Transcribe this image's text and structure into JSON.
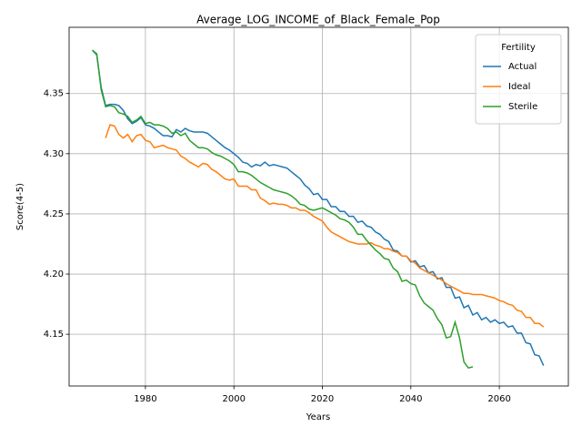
{
  "chart_data": {
    "type": "line",
    "title": "Average_LOG_INCOME_of_Black_Female_Pop",
    "xlabel": "Years",
    "ylabel": "Score(4-5)",
    "x": [
      1968,
      1969,
      1970,
      1971,
      1972,
      1973,
      1974,
      1975,
      1976,
      1977,
      1978,
      1979,
      1980,
      1981,
      1982,
      1983,
      1984,
      1985,
      1986,
      1987,
      1988,
      1989,
      1990,
      1991,
      1992,
      1993,
      1994,
      1995,
      1996,
      1997,
      1998,
      1999,
      2000,
      2001,
      2002,
      2003,
      2004,
      2005,
      2006,
      2007,
      2008,
      2009,
      2010,
      2011,
      2012,
      2013,
      2014,
      2015,
      2016,
      2017,
      2018,
      2019,
      2020,
      2021,
      2022,
      2023,
      2024,
      2025,
      2026,
      2027,
      2028,
      2029,
      2030,
      2031,
      2032,
      2033,
      2034,
      2035,
      2036,
      2037,
      2038,
      2039,
      2040,
      2041,
      2042,
      2043,
      2044,
      2045,
      2046,
      2047,
      2048,
      2049,
      2050,
      2051,
      2052,
      2053,
      2054,
      2055,
      2056,
      2057,
      2058,
      2059,
      2060,
      2061,
      2062,
      2063,
      2064,
      2065,
      2066,
      2067,
      2068,
      2069,
      2070
    ],
    "series": [
      {
        "name": "Actual",
        "color": "#1f77b4",
        "values": [
          4.386,
          4.382,
          4.355,
          4.34,
          4.341,
          4.341,
          4.34,
          4.336,
          4.329,
          4.325,
          4.327,
          4.33,
          4.324,
          4.323,
          4.321,
          4.318,
          4.315,
          4.315,
          4.314,
          4.32,
          4.318,
          4.321,
          4.319,
          4.318,
          4.318,
          4.318,
          4.317,
          4.314,
          4.311,
          4.308,
          4.305,
          4.303,
          4.3,
          4.297,
          4.293,
          4.292,
          4.289,
          4.291,
          4.29,
          4.293,
          4.29,
          4.291,
          4.29,
          4.289,
          4.288,
          4.285,
          4.282,
          4.279,
          4.274,
          4.271,
          4.266,
          4.267,
          4.262,
          4.262,
          4.256,
          4.256,
          4.252,
          4.252,
          4.248,
          4.248,
          4.243,
          4.244,
          4.24,
          4.239,
          4.235,
          4.233,
          4.229,
          4.227,
          4.22,
          4.219,
          4.215,
          4.215,
          4.21,
          4.211,
          4.206,
          4.207,
          4.201,
          4.202,
          4.196,
          4.197,
          4.189,
          4.189,
          4.18,
          4.181,
          4.172,
          4.174,
          4.166,
          4.168,
          4.162,
          4.164,
          4.16,
          4.162,
          4.159,
          4.16,
          4.156,
          4.157,
          4.151,
          4.151,
          4.143,
          4.142,
          4.133,
          4.132,
          4.124
        ]
      },
      {
        "name": "Ideal",
        "color": "#ff7f0e",
        "values": [
          null,
          null,
          null,
          4.313,
          4.324,
          4.323,
          4.316,
          4.313,
          4.316,
          4.31,
          4.315,
          4.316,
          4.311,
          4.31,
          4.305,
          4.306,
          4.307,
          4.305,
          4.304,
          4.303,
          4.298,
          4.296,
          4.293,
          4.291,
          4.289,
          4.292,
          4.291,
          4.287,
          4.285,
          4.282,
          4.279,
          4.278,
          4.279,
          4.273,
          4.273,
          4.273,
          4.27,
          4.27,
          4.263,
          4.261,
          4.258,
          4.259,
          4.258,
          4.258,
          4.257,
          4.255,
          4.255,
          4.253,
          4.253,
          4.251,
          4.248,
          4.246,
          4.244,
          4.239,
          4.235,
          4.233,
          4.231,
          4.229,
          4.227,
          4.226,
          4.225,
          4.225,
          4.225,
          4.226,
          4.224,
          4.223,
          4.221,
          4.221,
          4.219,
          4.218,
          4.215,
          4.215,
          4.211,
          4.209,
          4.205,
          4.203,
          4.201,
          4.199,
          4.197,
          4.195,
          4.192,
          4.19,
          4.188,
          4.186,
          4.184,
          4.184,
          4.183,
          4.183,
          4.183,
          4.182,
          4.181,
          4.18,
          4.178,
          4.177,
          4.175,
          4.174,
          4.17,
          4.169,
          4.164,
          4.164,
          4.159,
          4.159,
          4.156
        ]
      },
      {
        "name": "Sterile",
        "color": "#2ca02c",
        "values": [
          4.386,
          4.383,
          4.353,
          4.339,
          4.34,
          4.339,
          4.334,
          4.333,
          4.331,
          4.326,
          4.328,
          4.331,
          4.325,
          4.326,
          4.324,
          4.324,
          4.323,
          4.321,
          4.317,
          4.318,
          4.315,
          4.317,
          4.311,
          4.308,
          4.305,
          4.305,
          4.304,
          4.301,
          4.299,
          4.298,
          4.296,
          4.294,
          4.291,
          4.285,
          4.285,
          4.284,
          4.282,
          4.279,
          4.276,
          4.274,
          4.272,
          4.27,
          4.269,
          4.268,
          4.267,
          4.265,
          4.262,
          4.258,
          4.257,
          4.254,
          4.253,
          4.254,
          4.255,
          4.253,
          4.251,
          4.249,
          4.246,
          4.245,
          4.243,
          4.239,
          4.233,
          4.233,
          4.228,
          4.224,
          4.22,
          4.217,
          4.213,
          4.212,
          4.205,
          4.202,
          4.194,
          4.195,
          4.192,
          4.191,
          4.182,
          4.176,
          4.173,
          4.17,
          4.163,
          4.158,
          4.147,
          4.148,
          4.16,
          4.147,
          4.127,
          4.122,
          4.123,
          null,
          null,
          null,
          null,
          null,
          null,
          null,
          null,
          null,
          null,
          null,
          null,
          null,
          null,
          null,
          null
        ]
      }
    ],
    "xlim": [
      1962.75,
      2075.6
    ],
    "ylim": [
      4.107,
      4.405
    ],
    "xticks": [
      1980,
      2000,
      2020,
      2040,
      2060
    ],
    "yticks": [
      4.15,
      {
        "value": 4.2,
        "label": "4.20"
      },
      4.25,
      {
        "value": 4.3,
        "label": "4.30"
      },
      4.35
    ],
    "grid": true,
    "legend_title": "Fertility",
    "legend_loc": "upper right"
  }
}
